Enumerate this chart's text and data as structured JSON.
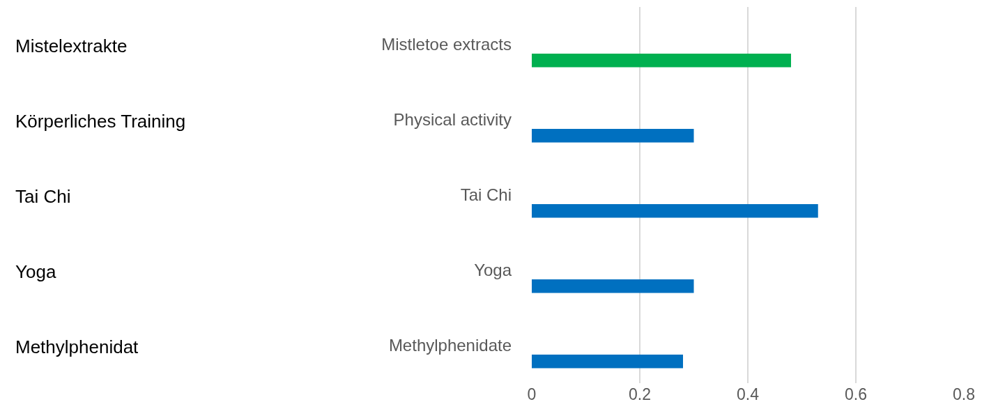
{
  "chart_data": {
    "type": "bar",
    "orientation": "horizontal",
    "categories": [
      "Mistletoe extracts",
      "Physical activity",
      "Tai Chi",
      "Yoga",
      "Methylphenidate"
    ],
    "values": [
      0.48,
      0.3,
      0.53,
      0.3,
      0.28
    ],
    "colors": [
      "#00b050",
      "#0070c0",
      "#0070c0",
      "#0070c0",
      "#0070c0"
    ],
    "xlim": [
      0,
      0.8
    ],
    "xticks": [
      0,
      0.2,
      0.4,
      0.6,
      0.8
    ],
    "grid": "x",
    "legend": false,
    "annotations": [
      "Mistelextrakte",
      "Körperliches Training",
      "Tai Chi",
      "Yoga",
      "Methylphenidat"
    ]
  }
}
